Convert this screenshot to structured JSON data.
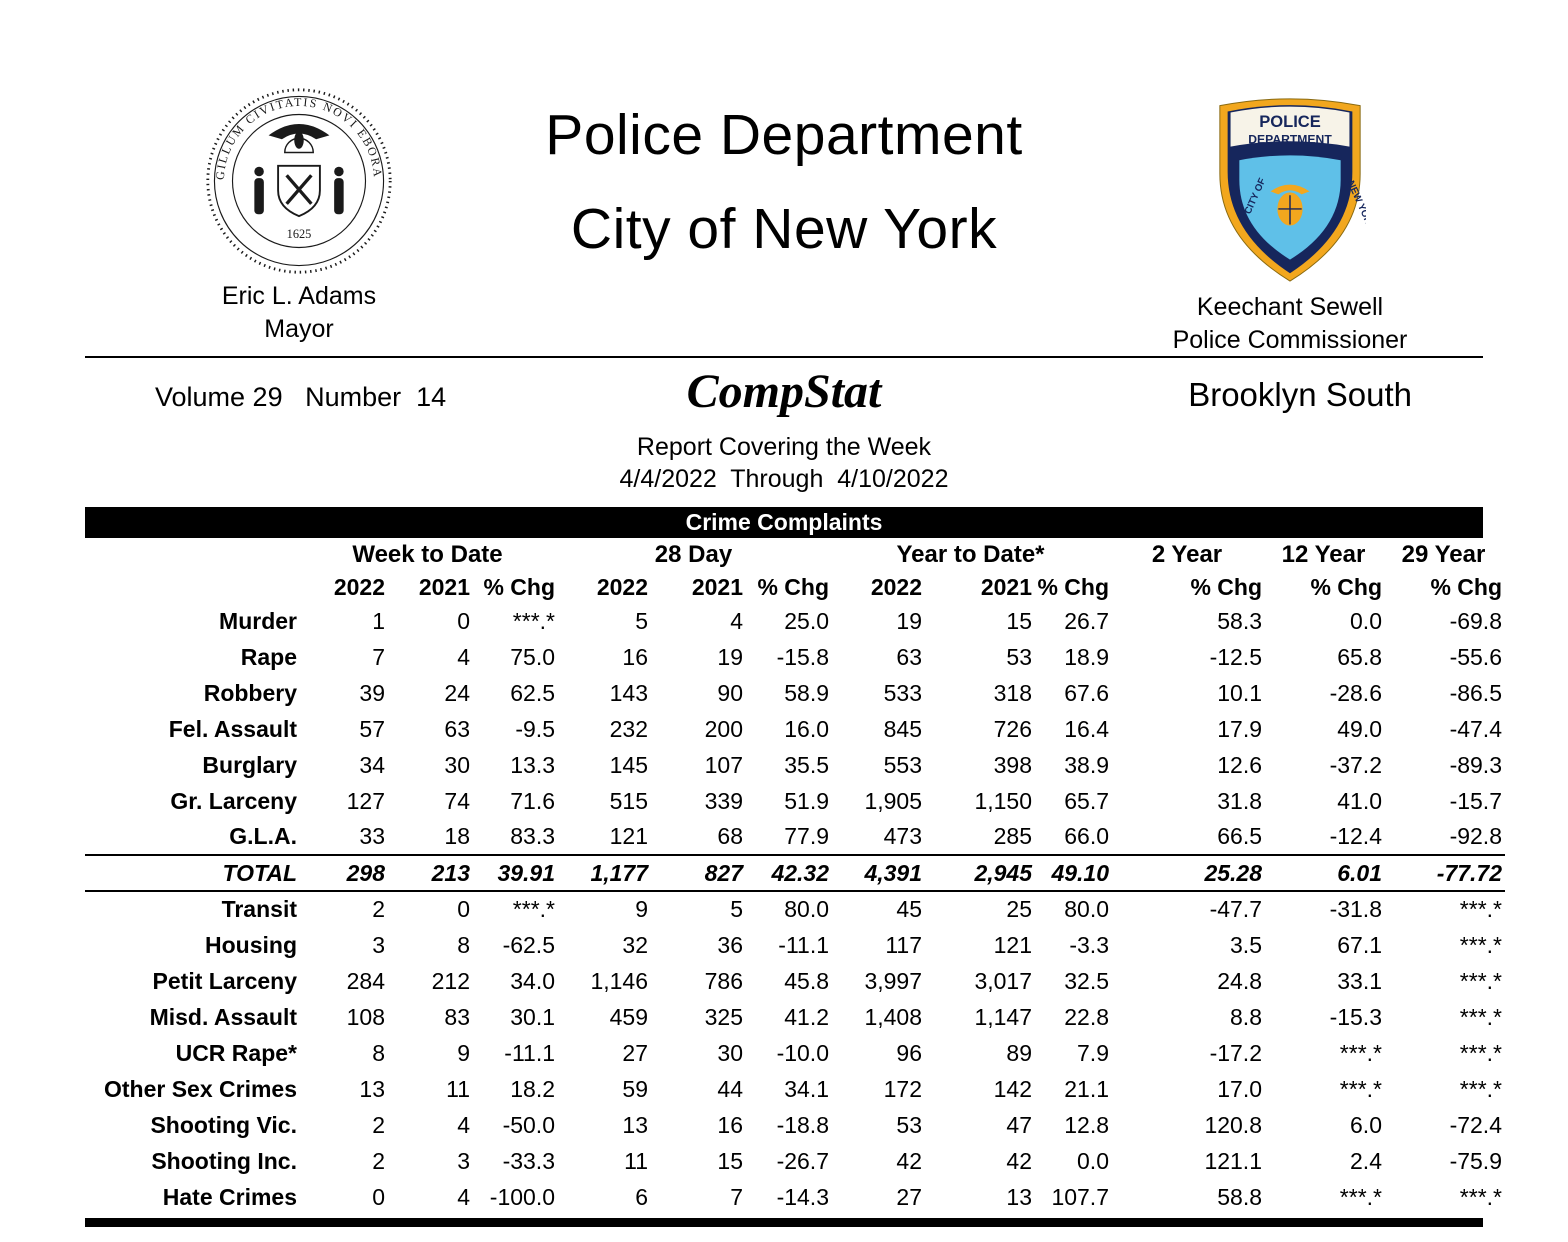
{
  "header": {
    "title_line1": "Police Department",
    "title_line2": "City of New York",
    "mayor_name": "Eric L. Adams",
    "mayor_title": "Mayor",
    "commissioner_name": "Keechant Sewell",
    "commissioner_title": "Police Commissioner"
  },
  "seal": {
    "ring_text": "SIGILLUM CIVITATIS NOVI EBORACI",
    "year": "1625"
  },
  "patch": {
    "line1": "POLICE",
    "line2": "DEPARTMENT",
    "left_text": "CITY OF",
    "right_text": "NEW YORK",
    "colors": {
      "navy": "#16265c",
      "gold": "#f2a71e",
      "light_blue": "#5fc0e8",
      "cream": "#f7f3e8"
    }
  },
  "report": {
    "volume_label": "Volume 29   Number  14",
    "name": "CompStat",
    "borough": "Brooklyn South",
    "covering": "Report Covering the Week",
    "date_range": "4/4/2022  Through  4/10/2022",
    "section_title": "Crime Complaints"
  },
  "table": {
    "group_headers": [
      "Week to Date",
      "28 Day",
      "Year to Date*",
      "2 Year",
      "12 Year",
      "29 Year"
    ],
    "sub_headers": [
      "2022",
      "2021",
      "% Chg",
      "2022",
      "2021",
      "% Chg",
      "2022",
      "2021",
      "% Chg",
      "% Chg",
      "% Chg",
      "% Chg"
    ],
    "major_rows": [
      {
        "label": "Murder",
        "values": [
          "1",
          "0",
          "***.*",
          "5",
          "4",
          "25.0",
          "19",
          "15",
          "26.7",
          "58.3",
          "0.0",
          "-69.8"
        ]
      },
      {
        "label": "Rape",
        "values": [
          "7",
          "4",
          "75.0",
          "16",
          "19",
          "-15.8",
          "63",
          "53",
          "18.9",
          "-12.5",
          "65.8",
          "-55.6"
        ]
      },
      {
        "label": "Robbery",
        "values": [
          "39",
          "24",
          "62.5",
          "143",
          "90",
          "58.9",
          "533",
          "318",
          "67.6",
          "10.1",
          "-28.6",
          "-86.5"
        ]
      },
      {
        "label": "Fel. Assault",
        "values": [
          "57",
          "63",
          "-9.5",
          "232",
          "200",
          "16.0",
          "845",
          "726",
          "16.4",
          "17.9",
          "49.0",
          "-47.4"
        ]
      },
      {
        "label": "Burglary",
        "values": [
          "34",
          "30",
          "13.3",
          "145",
          "107",
          "35.5",
          "553",
          "398",
          "38.9",
          "12.6",
          "-37.2",
          "-89.3"
        ]
      },
      {
        "label": "Gr. Larceny",
        "values": [
          "127",
          "74",
          "71.6",
          "515",
          "339",
          "51.9",
          "1,905",
          "1,150",
          "65.7",
          "31.8",
          "41.0",
          "-15.7"
        ]
      },
      {
        "label": "G.L.A.",
        "values": [
          "33",
          "18",
          "83.3",
          "121",
          "68",
          "77.9",
          "473",
          "285",
          "66.0",
          "66.5",
          "-12.4",
          "-92.8"
        ]
      }
    ],
    "total_row": {
      "label": "TOTAL",
      "values": [
        "298",
        "213",
        "39.91",
        "1,177",
        "827",
        "42.32",
        "4,391",
        "2,945",
        "49.10",
        "25.28",
        "6.01",
        "-77.72"
      ]
    },
    "other_rows": [
      {
        "label": "Transit",
        "values": [
          "2",
          "0",
          "***.*",
          "9",
          "5",
          "80.0",
          "45",
          "25",
          "80.0",
          "-47.7",
          "-31.8",
          "***.*"
        ]
      },
      {
        "label": "Housing",
        "values": [
          "3",
          "8",
          "-62.5",
          "32",
          "36",
          "-11.1",
          "117",
          "121",
          "-3.3",
          "3.5",
          "67.1",
          "***.*"
        ]
      },
      {
        "label": "Petit Larceny",
        "values": [
          "284",
          "212",
          "34.0",
          "1,146",
          "786",
          "45.8",
          "3,997",
          "3,017",
          "32.5",
          "24.8",
          "33.1",
          "***.*"
        ]
      },
      {
        "label": "Misd. Assault",
        "values": [
          "108",
          "83",
          "30.1",
          "459",
          "325",
          "41.2",
          "1,408",
          "1,147",
          "22.8",
          "8.8",
          "-15.3",
          "***.*"
        ]
      },
      {
        "label": "UCR Rape*",
        "values": [
          "8",
          "9",
          "-11.1",
          "27",
          "30",
          "-10.0",
          "96",
          "89",
          "7.9",
          "-17.2",
          "***.*",
          "***.*"
        ]
      },
      {
        "label": "Other Sex Crimes",
        "values": [
          "13",
          "11",
          "18.2",
          "59",
          "44",
          "34.1",
          "172",
          "142",
          "21.1",
          "17.0",
          "***.*",
          "***.*"
        ]
      },
      {
        "label": "Shooting Vic.",
        "values": [
          "2",
          "4",
          "-50.0",
          "13",
          "16",
          "-18.8",
          "53",
          "47",
          "12.8",
          "120.8",
          "6.0",
          "-72.4"
        ]
      },
      {
        "label": "Shooting Inc.",
        "values": [
          "2",
          "3",
          "-33.3",
          "11",
          "15",
          "-26.7",
          "42",
          "42",
          "0.0",
          "121.1",
          "2.4",
          "-75.9"
        ]
      },
      {
        "label": "Hate Crimes",
        "values": [
          "0",
          "4",
          "-100.0",
          "6",
          "7",
          "-14.3",
          "27",
          "13",
          "107.7",
          "58.8",
          "***.*",
          "***.*"
        ]
      }
    ]
  }
}
